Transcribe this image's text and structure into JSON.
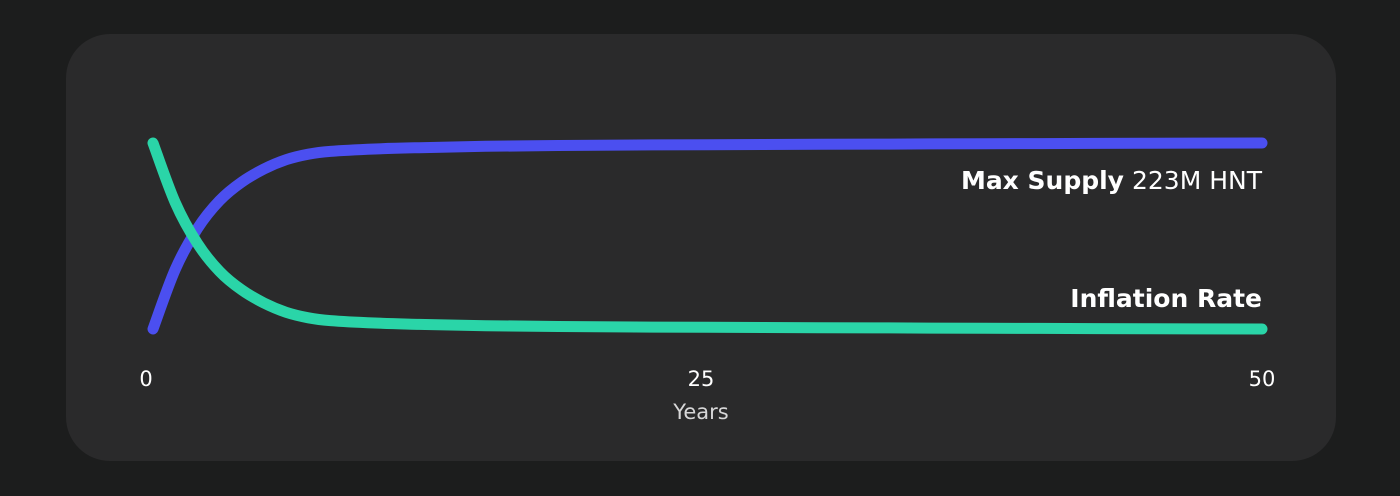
{
  "chart_data": {
    "type": "line",
    "xlabel": "Years",
    "x_ticks": [
      "0",
      "25",
      "50"
    ],
    "xlim": [
      0,
      50
    ],
    "ylim": [
      0,
      1
    ],
    "series": [
      {
        "name": "Max Supply",
        "value_label": "223M HNT",
        "color": "#4b4ff0",
        "x": [
          0,
          1,
          2,
          3,
          4,
          5,
          6,
          7,
          8,
          10,
          12,
          15,
          20,
          25,
          30,
          35,
          40,
          45,
          50
        ],
        "y": [
          0.0,
          0.32,
          0.54,
          0.69,
          0.79,
          0.86,
          0.91,
          0.94,
          0.955,
          0.968,
          0.975,
          0.982,
          0.988,
          0.991,
          0.993,
          0.995,
          0.997,
          0.999,
          1.0
        ]
      },
      {
        "name": "Inflation Rate",
        "color": "#2ad5a8",
        "x": [
          0,
          1,
          2,
          3,
          4,
          5,
          6,
          7,
          8,
          10,
          12,
          15,
          20,
          25,
          30,
          35,
          40,
          45,
          50
        ],
        "y": [
          1.0,
          0.68,
          0.46,
          0.31,
          0.21,
          0.14,
          0.09,
          0.06,
          0.045,
          0.032,
          0.025,
          0.018,
          0.012,
          0.009,
          0.007,
          0.005,
          0.003,
          0.001,
          0.0
        ]
      }
    ]
  }
}
